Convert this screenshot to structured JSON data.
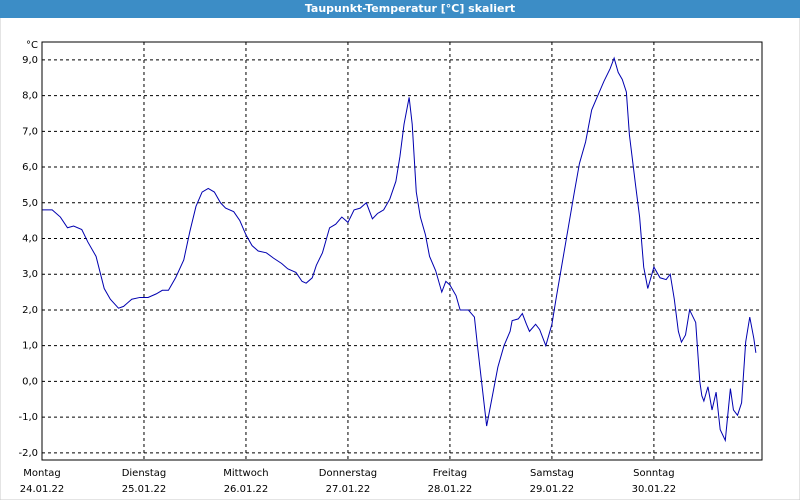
{
  "chart_data": {
    "type": "line",
    "title": "Taupunkt-Temperatur [°C] skaliert",
    "y_unit": "°C",
    "xlim": [
      0,
      7.06
    ],
    "ylim": [
      -2.2,
      9.5
    ],
    "grid": true,
    "xticks": [
      {
        "value": 0,
        "label": "Montag"
      },
      {
        "value": 1,
        "label": "Dienstag"
      },
      {
        "value": 2,
        "label": "Mittwoch"
      },
      {
        "value": 3,
        "label": "Donnerstag"
      },
      {
        "value": 4,
        "label": "Freitag"
      },
      {
        "value": 5,
        "label": "Samstag"
      },
      {
        "value": 6,
        "label": "Sonntag"
      }
    ],
    "xtick_dates": [
      "24.01.22",
      "25.01.22",
      "26.01.22",
      "27.01.22",
      "28.01.22",
      "29.01.22",
      "30.01.22"
    ],
    "yticks": [
      {
        "value": -2,
        "label": "-2,0"
      },
      {
        "value": -1,
        "label": "-1,0"
      },
      {
        "value": 0,
        "label": "0,0"
      },
      {
        "value": 1,
        "label": "1,0"
      },
      {
        "value": 2,
        "label": "2,0"
      },
      {
        "value": 3,
        "label": "3,0"
      },
      {
        "value": 4,
        "label": "4,0"
      },
      {
        "value": 5,
        "label": "5,0"
      },
      {
        "value": 6,
        "label": "6,0"
      },
      {
        "value": 7,
        "label": "7,0"
      },
      {
        "value": 8,
        "label": "8,0"
      },
      {
        "value": 9,
        "label": "9,0"
      }
    ],
    "x": [
      0,
      0.1,
      0.18,
      0.25,
      0.31,
      0.39,
      0.45,
      0.53,
      0.61,
      0.67,
      0.75,
      0.8,
      0.88,
      0.96,
      1.04,
      1.12,
      1.18,
      1.24,
      1.31,
      1.39,
      1.45,
      1.51,
      1.57,
      1.63,
      1.69,
      1.75,
      1.8,
      1.88,
      1.94,
      2.0,
      2.06,
      2.12,
      2.2,
      2.27,
      2.35,
      2.41,
      2.49,
      2.55,
      2.59,
      2.65,
      2.69,
      2.75,
      2.82,
      2.88,
      2.94,
      3.0,
      3.06,
      3.12,
      3.18,
      3.24,
      3.29,
      3.35,
      3.41,
      3.47,
      3.51,
      3.55,
      3.6,
      3.63,
      3.67,
      3.71,
      3.76,
      3.8,
      3.86,
      3.92,
      3.96,
      4.0,
      4.06,
      4.1,
      4.18,
      4.24,
      4.27,
      4.31,
      4.36,
      4.41,
      4.47,
      4.53,
      4.59,
      4.61,
      4.67,
      4.71,
      4.75,
      4.78,
      4.84,
      4.88,
      4.94,
      5.0,
      5.04,
      5.1,
      5.16,
      5.22,
      5.27,
      5.33,
      5.39,
      5.45,
      5.51,
      5.57,
      5.61,
      5.65,
      5.69,
      5.73,
      5.76,
      5.82,
      5.86,
      5.9,
      5.94,
      6.0,
      6.06,
      6.12,
      6.16,
      6.2,
      6.24,
      6.27,
      6.31,
      6.35,
      6.41,
      6.45,
      6.47,
      6.49,
      6.53,
      6.57,
      6.61,
      6.65,
      6.7,
      6.75,
      6.78,
      6.82,
      6.86,
      6.9,
      6.94,
      6.98,
      7.0
    ],
    "series": [
      {
        "name": "Taupunkt-Temperatur",
        "color": "#0000b0",
        "values": [
          4.8,
          4.8,
          4.6,
          4.3,
          4.35,
          4.25,
          3.9,
          3.5,
          2.6,
          2.3,
          2.05,
          2.1,
          2.3,
          2.35,
          2.35,
          2.45,
          2.55,
          2.55,
          2.9,
          3.4,
          4.2,
          4.9,
          5.3,
          5.4,
          5.3,
          5.0,
          4.85,
          4.75,
          4.5,
          4.1,
          3.8,
          3.65,
          3.6,
          3.45,
          3.3,
          3.15,
          3.05,
          2.8,
          2.75,
          2.9,
          3.25,
          3.6,
          4.3,
          4.4,
          4.6,
          4.45,
          4.8,
          4.85,
          5.0,
          4.55,
          4.7,
          4.8,
          5.1,
          5.6,
          6.3,
          7.2,
          7.95,
          7.2,
          5.3,
          4.6,
          4.1,
          3.5,
          3.1,
          2.5,
          2.8,
          2.7,
          2.4,
          2.0,
          2.0,
          1.8,
          1.0,
          0.0,
          -1.25,
          -0.5,
          0.4,
          1.0,
          1.4,
          1.7,
          1.75,
          1.9,
          1.6,
          1.4,
          1.6,
          1.45,
          1.0,
          1.6,
          2.3,
          3.3,
          4.3,
          5.3,
          6.1,
          6.7,
          7.6,
          8.0,
          8.4,
          8.75,
          9.05,
          8.65,
          8.45,
          8.1,
          6.9,
          5.5,
          4.6,
          3.2,
          2.6,
          3.2,
          2.9,
          2.85,
          3.0,
          2.3,
          1.4,
          1.1,
          1.3,
          2.0,
          1.65,
          0.0,
          -0.4,
          -0.55,
          -0.15,
          -0.8,
          -0.3,
          -1.35,
          -1.65,
          -0.2,
          -0.8,
          -0.95,
          -0.6,
          1.1,
          1.8,
          1.2,
          0.8
        ]
      }
    ]
  }
}
